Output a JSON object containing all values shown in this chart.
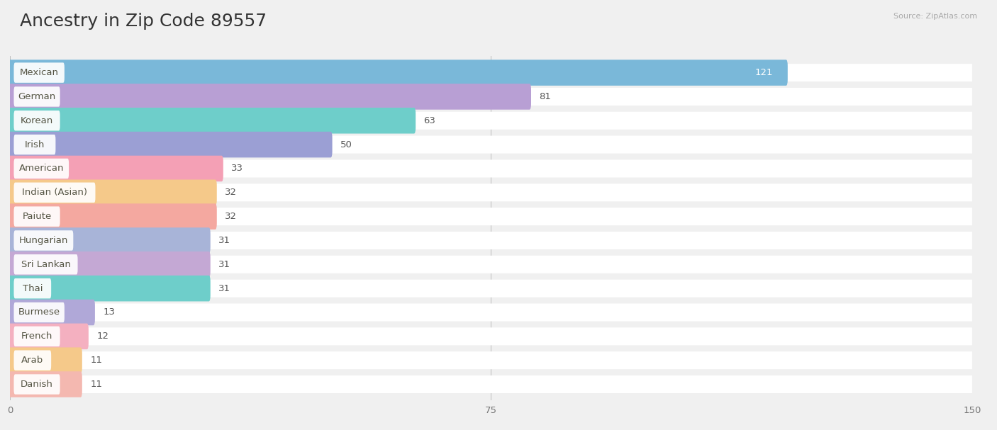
{
  "title": "Ancestry in Zip Code 89557",
  "source": "Source: ZipAtlas.com",
  "categories": [
    "Mexican",
    "German",
    "Korean",
    "Irish",
    "American",
    "Indian (Asian)",
    "Paiute",
    "Hungarian",
    "Sri Lankan",
    "Thai",
    "Burmese",
    "French",
    "Arab",
    "Danish"
  ],
  "values": [
    121,
    81,
    63,
    50,
    33,
    32,
    32,
    31,
    31,
    31,
    13,
    12,
    11,
    11
  ],
  "bar_colors": [
    "#7ab8d9",
    "#b89fd4",
    "#6ececa",
    "#9b9fd4",
    "#f4a0b5",
    "#f5c98a",
    "#f4a8a0",
    "#a8b4d8",
    "#c4a8d4",
    "#6ececa",
    "#b0a8d8",
    "#f4b0c0",
    "#f5c98a",
    "#f4b8b0"
  ],
  "xlim_max": 150,
  "xticks": [
    0,
    75,
    150
  ],
  "background_color": "#f0f0f0",
  "row_bg_color": "#ffffff",
  "title_fontsize": 18,
  "label_fontsize": 9.5,
  "value_fontsize": 9.5
}
